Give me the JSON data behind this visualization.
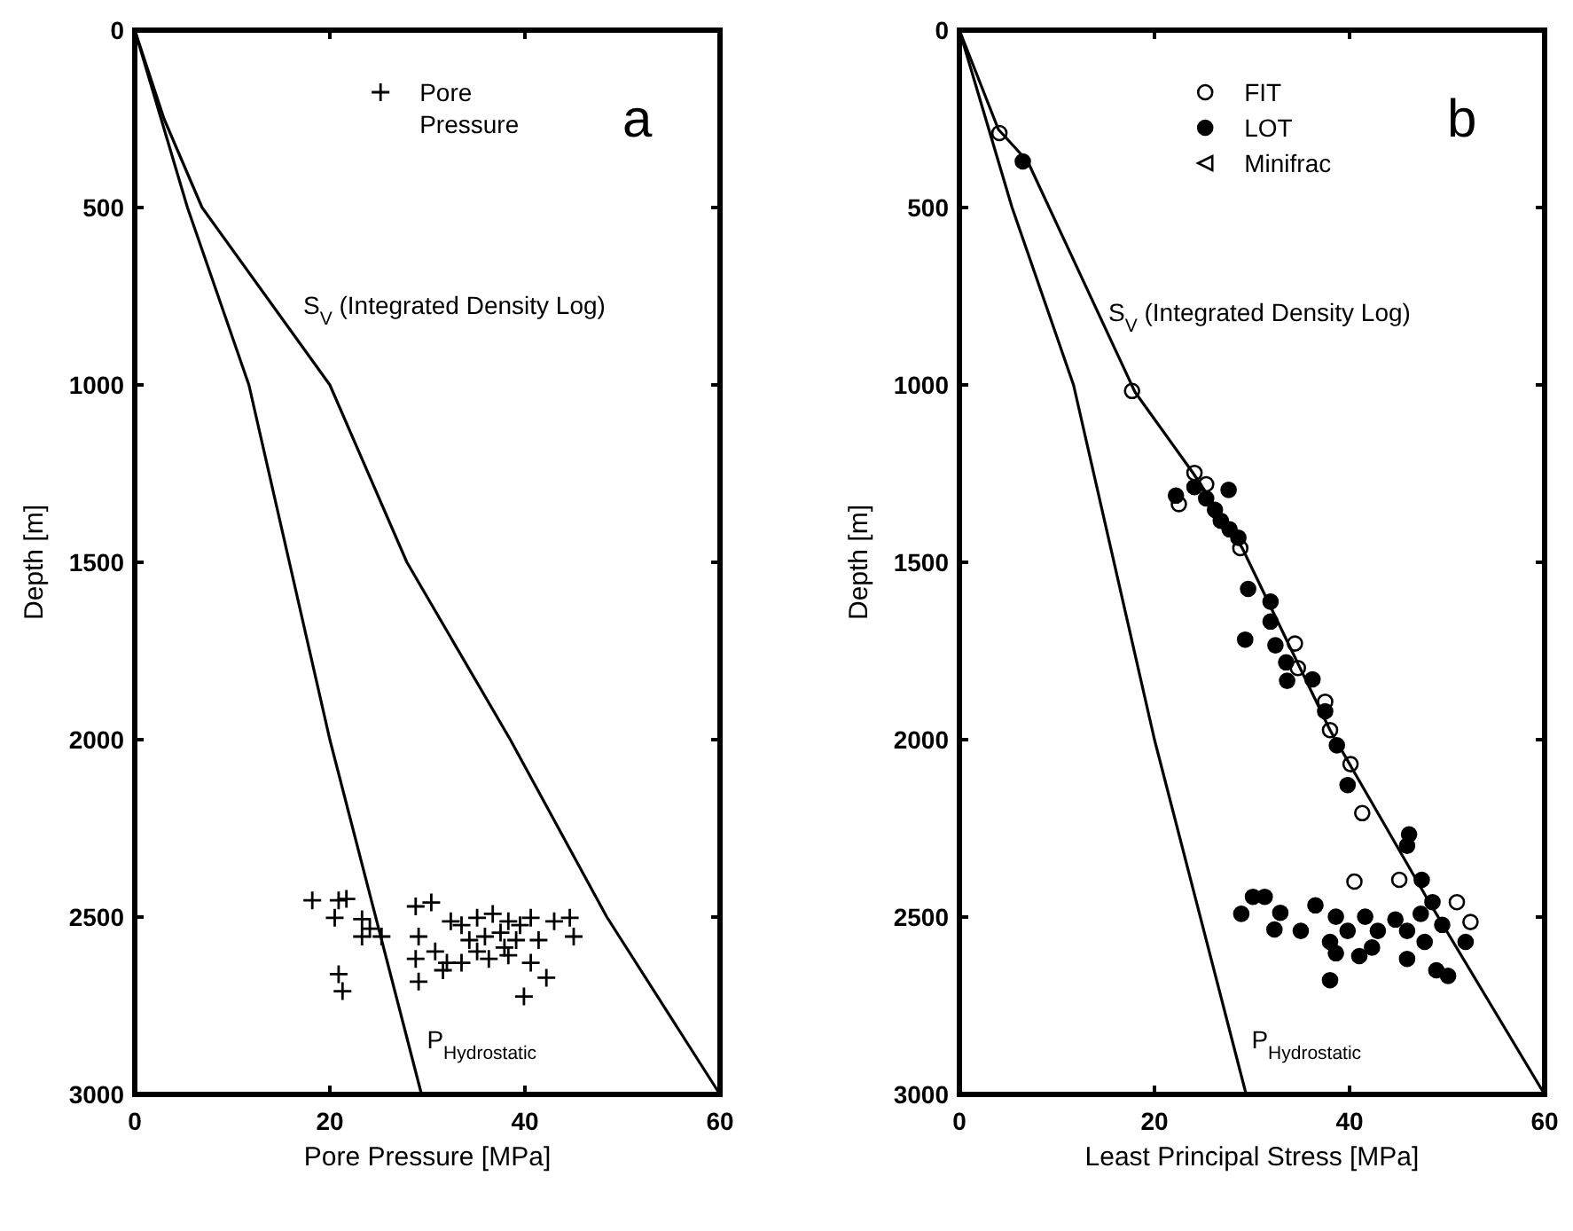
{
  "chart_data": [
    {
      "type": "scatter",
      "xlabel": "Pore Pressure [MPa]",
      "ylabel": "Depth [m]",
      "xlim": [
        0,
        60
      ],
      "ylim": [
        3000,
        0
      ],
      "xticks": [
        0,
        20,
        40,
        60
      ],
      "yticks": [
        0,
        500,
        1000,
        1500,
        2000,
        2500,
        3000
      ],
      "legend": "top",
      "annotations": [
        "a"
      ],
      "series": [
        {
          "name": "Pore Pressure",
          "color": "#000000",
          "marker": "cross",
          "x": [
            18.2,
            20.9,
            21.7,
            20.5,
            23.3,
            24.1,
            25.3,
            23.3,
            20.9,
            21.3,
            28.8,
            30.4,
            29.1,
            28.8,
            29.1,
            30.8,
            31.6,
            32.4,
            33.5,
            35.1,
            36.7,
            37.5,
            38.3,
            39.5,
            40.6,
            41.4,
            38.3,
            36.3,
            40.6,
            42.2,
            39.9,
            43.0,
            44.6,
            45.0,
            34.3,
            35.9,
            39.1,
            32.0,
            33.5,
            37.9,
            35.1
          ],
          "values": [
            2453,
            2453,
            2449,
            2502,
            2506,
            2533,
            2555,
            2555,
            2661,
            2709,
            2470,
            2459,
            2555,
            2618,
            2682,
            2597,
            2650,
            2512,
            2523,
            2502,
            2491,
            2544,
            2512,
            2523,
            2502,
            2565,
            2608,
            2618,
            2629,
            2671,
            2724,
            2512,
            2502,
            2555,
            2565,
            2555,
            2565,
            2629,
            2629,
            2586,
            2597
          ]
        },
        {
          "type": "line",
          "name": "S$_{V}$ (Integrated Density Log)",
          "color": "#000000",
          "marker": "none",
          "x": [
            0,
            3,
            6.9,
            20,
            27.9,
            38.5,
            48.4,
            60
          ],
          "values": [
            0,
            250,
            500,
            1000,
            1500,
            2000,
            2500,
            3000
          ]
        },
        {
          "type": "line",
          "name": "P$_{Hydrostatic}$",
          "color": "#000000",
          "marker": "none",
          "x": [
            0,
            5.4,
            11.7,
            20,
            29.4
          ],
          "values": [
            0,
            500,
            1000,
            2000,
            3000
          ]
        }
      ]
    },
    {
      "type": "scatter",
      "xlabel": "Least Principal Stress [MPa]",
      "ylabel": "Depth [m]",
      "xlim": [
        0,
        60
      ],
      "ylim": [
        3000,
        0
      ],
      "xticks": [
        0,
        20,
        40,
        60
      ],
      "yticks": [
        0,
        500,
        1000,
        1500,
        2000,
        2500,
        3000
      ],
      "legend": "top",
      "annotations": [
        "b"
      ],
      "series": [
        {
          "name": "FIT",
          "color": "#ffffff",
          "marker": "circle",
          "x": [
            4.1,
            17.7,
            24.1,
            22.5,
            25.3,
            28.8,
            34.4,
            34.7,
            37.5,
            38.0,
            40.1,
            41.3,
            40.5,
            45.1,
            51.0,
            52.4
          ],
          "values": [
            290,
            1017,
            1248,
            1336,
            1280,
            1460,
            1729,
            1798,
            1893,
            1973,
            2069,
            2207,
            2400,
            2395,
            2458,
            2514
          ]
        },
        {
          "name": "LOT",
          "color": "#000000",
          "marker": "circle",
          "x": [
            6.5,
            22.2,
            24.1,
            25.3,
            26.2,
            26.8,
            27.7,
            28.6,
            27.6,
            29.6,
            31.9,
            31.9,
            29.3,
            32.4,
            33.5,
            33.6,
            36.2,
            37.5,
            38.7,
            39.8,
            46.1,
            45.9,
            47.4,
            30.1,
            31.3,
            28.9,
            32.9,
            32.3,
            35.0,
            36.5,
            38.6,
            38.0,
            39.8,
            41.6,
            42.9,
            44.7,
            45.9,
            47.3,
            48.5,
            49.5,
            38.6,
            41.0,
            45.9,
            48.9,
            50.1,
            38.0,
            51.9,
            47.7,
            42.3
          ],
          "values": [
            370,
            1312,
            1288,
            1320,
            1352,
            1383,
            1407,
            1431,
            1296,
            1575,
            1611,
            1667,
            1718,
            1734,
            1782,
            1834,
            1830,
            1920,
            2016,
            2128,
            2267,
            2299,
            2395,
            2443,
            2443,
            2491,
            2488,
            2535,
            2539,
            2467,
            2499,
            2570,
            2539,
            2499,
            2539,
            2507,
            2539,
            2491,
            2458,
            2522,
            2602,
            2610,
            2618,
            2650,
            2666,
            2678,
            2570,
            2570,
            2586
          ]
        },
        {
          "name": "Minifrac",
          "color": "#000000",
          "marker": "triangle"
        },
        {
          "type": "line",
          "name": "S$_{V}$ (Integrated Density Log)",
          "color": "#000000",
          "marker": "none",
          "x": [
            0,
            4,
            7,
            18,
            24,
            29,
            38,
            48,
            60
          ],
          "values": [
            0,
            280,
            370,
            1020,
            1250,
            1460,
            1973,
            2450,
            3000
          ]
        },
        {
          "type": "line",
          "name": "P$_{Hydrostatic}$",
          "color": "#000000",
          "marker": "none",
          "x": [
            0,
            5.4,
            11.7,
            20,
            29.4
          ],
          "values": [
            0,
            500,
            1000,
            2000,
            3000
          ]
        }
      ]
    }
  ]
}
